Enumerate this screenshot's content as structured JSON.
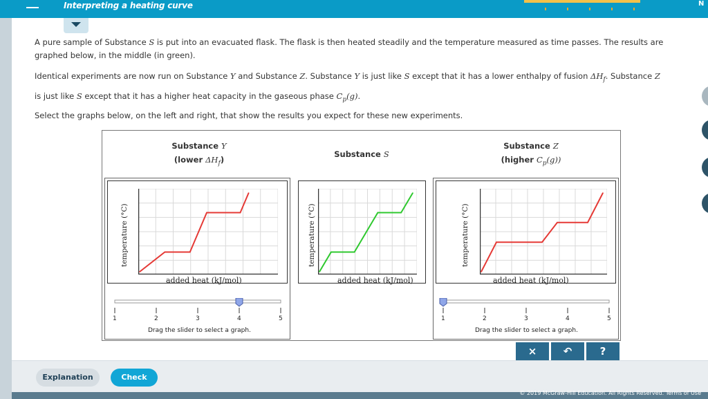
{
  "header": {
    "title": "Interpreting a heating curve",
    "right_text": "N"
  },
  "instructions": {
    "p1_a": "A pure sample of Substance ",
    "p1_var": "S",
    "p1_b": " is put into an evacuated flask. The flask is then heated steadily and the temperature measured as time passes. The results are",
    "p1_c": "graphed below, in the middle (in green).",
    "p2_a": "Identical experiments are now run on Substance ",
    "p2_var1": "Y",
    "p2_b": " and Substance ",
    "p2_var2": "Z",
    "p2_c": ". Substance ",
    "p2_var3": "Y",
    "p2_d": " is just like ",
    "p2_var4": "S",
    "p2_e": " except that it has a lower enthalpy of fusion ",
    "p2_sym1": "ΔH",
    "p2_sub1": "f",
    "p2_f": ". Substance ",
    "p2_var5": "Z",
    "p2_g": "is just like ",
    "p2_var6": "S",
    "p2_h": " except that it has a higher heat capacity in the gaseous phase ",
    "p2_sym2": "C",
    "p2_sub2": "p",
    "p2_sym3": "(g)",
    "p2_i": ".",
    "p3": "Select the graphs below, on the left and right, that show the results you expect for these new experiments."
  },
  "columns": {
    "left": {
      "title_prefix": "Substance ",
      "title_var": "Y",
      "subtitle_a": "(lower ",
      "subtitle_sym": "ΔH",
      "subtitle_sub": "f",
      "subtitle_b": ")"
    },
    "middle": {
      "title_prefix": "Substance ",
      "title_var": "S"
    },
    "right": {
      "title_prefix": "Substance ",
      "title_var": "Z",
      "subtitle_a": "(higher ",
      "subtitle_sym": "C",
      "subtitle_sub": "p",
      "subtitle_b": "(g))"
    }
  },
  "graphs": {
    "ylabel": "temperature (°C)",
    "xlabel": "added heat (kJ/mol)"
  },
  "sliders": {
    "ticks": [
      "1",
      "2",
      "3",
      "4",
      "5"
    ],
    "caption": "Drag the slider to select a graph.",
    "left_value": 4,
    "right_value": 1
  },
  "toolbar": {
    "clear_label": "×",
    "undo_label": "↶",
    "help_label": "?"
  },
  "buttons": {
    "explanation": "Explanation",
    "check": "Check"
  },
  "footer": {
    "text": "© 2019 McGraw-Hill Education. All Rights Reserved.   Terms of Use"
  },
  "colors": {
    "accent": "#0a9bc7",
    "red_curve": "#e53935",
    "green_curve": "#2ec82e",
    "toolbar": "#2a6a8e"
  },
  "chart_data": [
    {
      "type": "line",
      "name": "Substance Y",
      "xlabel": "added heat (kJ/mol)",
      "ylabel": "temperature (°C)",
      "color": "#e53935",
      "x": [
        0,
        1.5,
        3.0,
        4.0,
        6.0,
        6.5
      ],
      "y": [
        0,
        2.0,
        2.0,
        6.0,
        6.0,
        8.0
      ]
    },
    {
      "type": "line",
      "name": "Substance S",
      "xlabel": "added heat (kJ/mol)",
      "ylabel": "temperature (°C)",
      "color": "#2ec82e",
      "x": [
        0,
        1.0,
        3.0,
        5.0,
        7.0,
        8.0
      ],
      "y": [
        0,
        2.0,
        2.0,
        6.0,
        6.0,
        8.0
      ]
    },
    {
      "type": "line",
      "name": "Substance Z",
      "xlabel": "added heat (kJ/mol)",
      "ylabel": "temperature (°C)",
      "color": "#e53935",
      "x": [
        0,
        1.0,
        4.0,
        5.0,
        7.0,
        8.0
      ],
      "y": [
        0,
        3.0,
        3.0,
        5.0,
        5.0,
        8.0
      ]
    }
  ]
}
